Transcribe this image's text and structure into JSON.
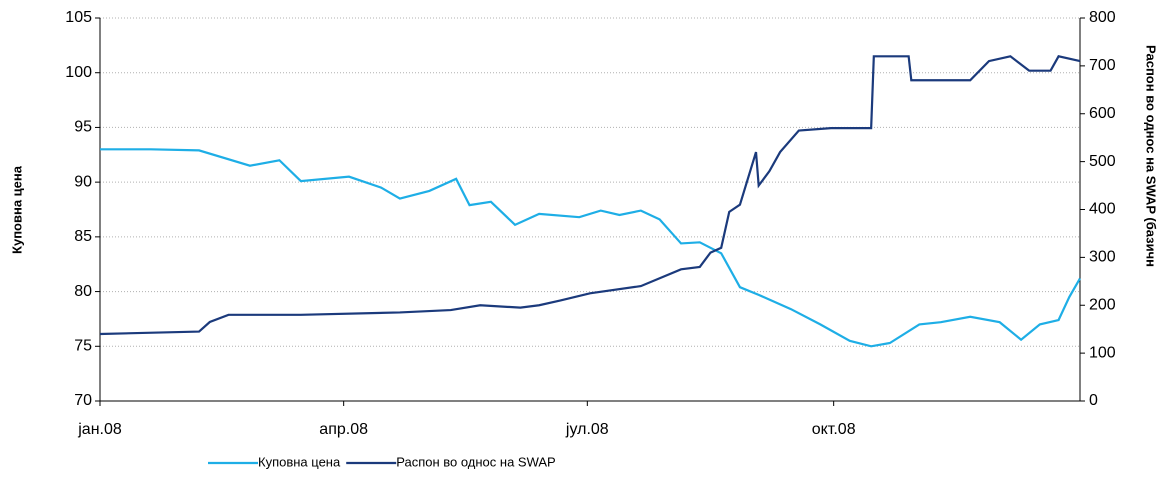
{
  "chart_data": {
    "type": "line",
    "ylabel": "Куповна цена",
    "y2label": "Распон во однос на SWAP (базичн",
    "xlim": [
      0,
      366
    ],
    "xticks": [
      {
        "value": 0,
        "label": "јан.08"
      },
      {
        "value": 91,
        "label": "апр.08"
      },
      {
        "value": 182,
        "label": "јул.08"
      },
      {
        "value": 274,
        "label": "окт.08"
      }
    ],
    "ylim": [
      70,
      105
    ],
    "yticks": [
      70,
      75,
      80,
      85,
      90,
      95,
      100,
      105
    ],
    "y2lim": [
      0,
      800
    ],
    "y2ticks": [
      0,
      100,
      200,
      300,
      400,
      500,
      600,
      700,
      800
    ],
    "grid": true,
    "series": [
      {
        "name": "Куповна цена",
        "color": "#1eaee6",
        "x": [
          0,
          19,
          37,
          56,
          67,
          75,
          93,
          105,
          112,
          123,
          133,
          138,
          146,
          155,
          164,
          179,
          187,
          194,
          202,
          209,
          217,
          224,
          232,
          239,
          246,
          258,
          269,
          280,
          288,
          295,
          306,
          314,
          325,
          336,
          344,
          351,
          358,
          362,
          366
        ],
        "values": [
          93,
          93,
          92.9,
          91.5,
          92,
          90.1,
          90.5,
          89.5,
          88.5,
          89.2,
          90.3,
          87.9,
          88.2,
          86.1,
          87.1,
          86.8,
          87.4,
          87,
          87.4,
          86.6,
          84.4,
          84.5,
          83.5,
          80.4,
          79.7,
          78.4,
          77,
          75.5,
          75,
          75.3,
          77,
          77.2,
          77.7,
          77.2,
          75.6,
          77,
          77.4,
          79.5,
          81.2
        ]
      },
      {
        "name": "Распон во однос на SWAP",
        "color": "#1b3a7c",
        "axis": "y2",
        "x": [
          0,
          37,
          41,
          48,
          75,
          112,
          131,
          142,
          157,
          164,
          172,
          183,
          202,
          217,
          224,
          228,
          232,
          235,
          239,
          245,
          246,
          250,
          254,
          261,
          273,
          288,
          289,
          302,
          303,
          325,
          332,
          340,
          347,
          355,
          358,
          366
        ],
        "values": [
          140,
          145,
          165,
          180,
          180,
          185,
          190,
          200,
          195,
          200,
          210,
          225,
          240,
          275,
          280,
          310,
          320,
          395,
          410,
          520,
          450,
          480,
          520,
          565,
          570,
          570,
          720,
          720,
          670,
          670,
          710,
          720,
          690,
          690,
          720,
          710
        ]
      }
    ]
  }
}
